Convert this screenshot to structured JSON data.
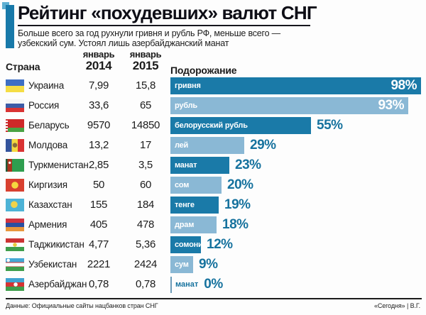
{
  "header": {
    "title": "Рейтинг «похудевших» валют СНГ",
    "subtitle_line1": "Больше всего за год рухнули гривня и рубль РФ, меньше всего —",
    "subtitle_line2": "узбекский сум. Устоял лишь азербайджанский манат"
  },
  "table": {
    "col_country": "Страна",
    "col_2014": {
      "line1": "январь",
      "line2": "2014"
    },
    "col_2015": {
      "line1": "январь",
      "line2": "2015"
    },
    "col_chart": "Подорожание"
  },
  "footer": {
    "source": "Данные: Официальные сайты нацбанков стран СНГ",
    "credit": "«Сегодня» | В.Г."
  },
  "colors": {
    "bar_dark": "#1a7aa8",
    "bar_light": "#8ab8d5",
    "accent": "#16729e"
  },
  "chart_data": {
    "type": "bar",
    "orientation": "horizontal",
    "title": "Подорожание",
    "unit": "%",
    "max_value": 98,
    "legend": "none",
    "categories": [
      "гривня",
      "рубль",
      "белорусский рубль",
      "лей",
      "манат",
      "сом",
      "тенге",
      "драм",
      "сомони",
      "сум",
      "манат"
    ],
    "values": [
      98,
      93,
      55,
      29,
      23,
      20,
      19,
      18,
      12,
      9,
      0
    ],
    "rows": [
      {
        "country": "Украина",
        "flag": "ua",
        "jan2014": "7,99",
        "jan2015": "15,8",
        "currency": "гривня",
        "pct": 98,
        "pct_label": "98%"
      },
      {
        "country": "Россия",
        "flag": "ru",
        "jan2014": "33,6",
        "jan2015": "65",
        "currency": "рубль",
        "pct": 93,
        "pct_label": "93%"
      },
      {
        "country": "Беларусь",
        "flag": "by",
        "jan2014": "9570",
        "jan2015": "14850",
        "currency": "белорусский рубль",
        "pct": 55,
        "pct_label": "55%"
      },
      {
        "country": "Молдова",
        "flag": "md",
        "jan2014": "13,2",
        "jan2015": "17",
        "currency": "лей",
        "pct": 29,
        "pct_label": "29%"
      },
      {
        "country": "Туркменистан",
        "flag": "tm",
        "jan2014": "2,85",
        "jan2015": "3,5",
        "currency": "манат",
        "pct": 23,
        "pct_label": "23%"
      },
      {
        "country": "Киргизия",
        "flag": "kg",
        "jan2014": "50",
        "jan2015": "60",
        "currency": "сом",
        "pct": 20,
        "pct_label": "20%"
      },
      {
        "country": "Казахстан",
        "flag": "kz",
        "jan2014": "155",
        "jan2015": "184",
        "currency": "тенге",
        "pct": 19,
        "pct_label": "19%"
      },
      {
        "country": "Армения",
        "flag": "am",
        "jan2014": "405",
        "jan2015": "478",
        "currency": "драм",
        "pct": 18,
        "pct_label": "18%"
      },
      {
        "country": "Таджикистан",
        "flag": "tj",
        "jan2014": "4,77",
        "jan2015": "5,36",
        "currency": "сомони",
        "pct": 12,
        "pct_label": "12%"
      },
      {
        "country": "Узбекистан",
        "flag": "uz",
        "jan2014": "2221",
        "jan2015": "2424",
        "currency": "сум",
        "pct": 9,
        "pct_label": "9%"
      },
      {
        "country": "Азербайджан",
        "flag": "az",
        "jan2014": "0,78",
        "jan2015": "0,78",
        "currency": "манат",
        "pct": 0,
        "pct_label": "0%"
      }
    ]
  }
}
